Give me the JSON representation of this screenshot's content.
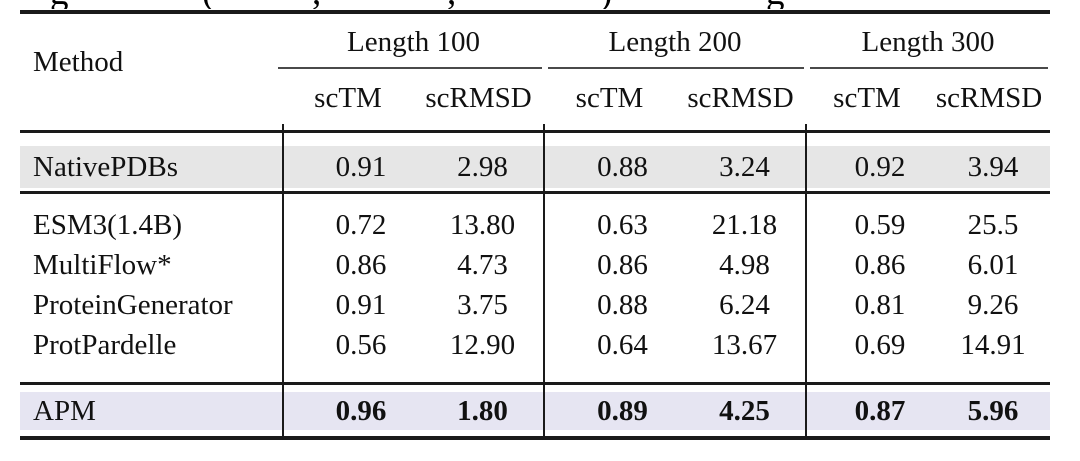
{
  "page": {
    "background": "#ffffff"
  },
  "clipped_caption": {
    "note": "bottom edge of a caption line cut off at top of screenshot",
    "fragments": [
      "g",
      "(",
      ",",
      ",",
      ")",
      "g"
    ]
  },
  "colors": {
    "native_row_bg": "#e6e6e6",
    "apm_row_bg": "#e6e5f2",
    "rule_color": "#1a1a1a",
    "cmidrule_color": "#4a4a4a"
  },
  "table": {
    "method_header": "Method",
    "groups": [
      {
        "label": "Length 100",
        "sub": [
          "scTM",
          "scRMSD"
        ]
      },
      {
        "label": "Length 200",
        "sub": [
          "scTM",
          "scRMSD"
        ]
      },
      {
        "label": "Length 300",
        "sub": [
          "scTM",
          "scRMSD"
        ]
      }
    ],
    "sections": [
      {
        "name": "reference",
        "rows": [
          {
            "method": "NativePDBs",
            "values": [
              "0.91",
              "2.98",
              "0.88",
              "3.24",
              "0.92",
              "3.94"
            ]
          }
        ]
      },
      {
        "name": "baselines",
        "rows": [
          {
            "method": "ESM3(1.4B)",
            "values": [
              "0.72",
              "13.80",
              "0.63",
              "21.18",
              "0.59",
              "25.5"
            ]
          },
          {
            "method": "MultiFlow*",
            "values": [
              "0.86",
              "4.73",
              "0.86",
              "4.98",
              "0.86",
              "6.01"
            ]
          },
          {
            "method": "ProteinGenerator",
            "values": [
              "0.91",
              "3.75",
              "0.88",
              "6.24",
              "0.81",
              "9.26"
            ]
          },
          {
            "method": "ProtPardelle",
            "values": [
              "0.56",
              "12.90",
              "0.64",
              "13.67",
              "0.69",
              "14.91"
            ]
          }
        ]
      },
      {
        "name": "ours",
        "bold_values": true,
        "rows": [
          {
            "method": "APM",
            "values": [
              "0.96",
              "1.80",
              "0.89",
              "4.25",
              "0.87",
              "5.96"
            ]
          }
        ]
      }
    ]
  }
}
